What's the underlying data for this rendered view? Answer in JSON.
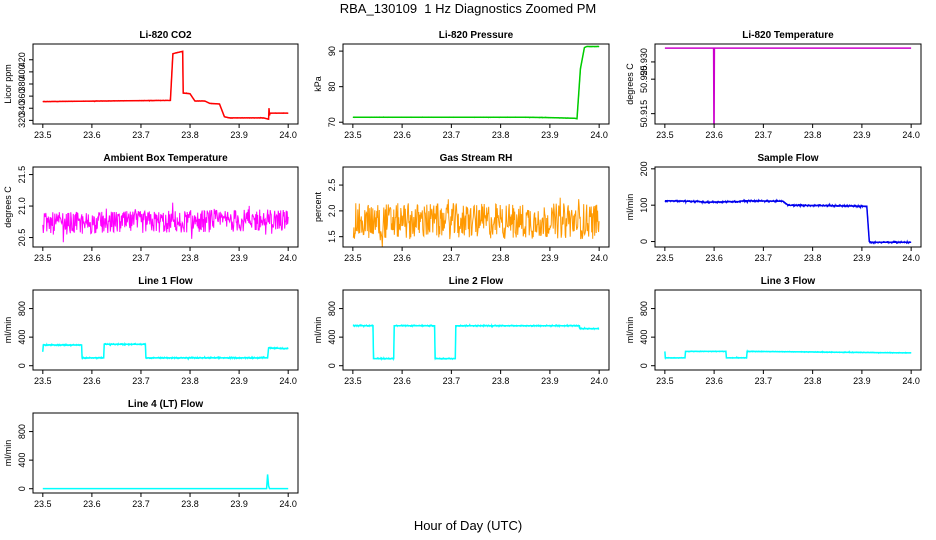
{
  "title": "RBA_130109  1 Hz Diagnostics Zoomed PM",
  "xlabel": "Hour of Day (UTC)",
  "chart_data": [
    {
      "type": "line",
      "title": "Li-820 CO2",
      "ylabel": "Licor ppm",
      "color": "#ff0000",
      "xlim": [
        23.48,
        24.02
      ],
      "ylim": [
        314,
        446
      ],
      "xticks": [
        "23.5",
        "23.6",
        "23.7",
        "23.8",
        "23.9",
        "24.0"
      ],
      "yticks": [
        "320",
        "340",
        "360",
        "380",
        "400",
        "420"
      ],
      "noise": 0.5,
      "x": [
        23.5,
        23.76,
        23.765,
        23.785,
        23.786,
        23.8,
        23.81,
        23.83,
        23.84,
        23.86,
        23.87,
        23.88,
        23.95,
        23.96,
        23.961,
        23.962,
        23.963,
        24.0
      ],
      "y": [
        351,
        353,
        430,
        434,
        365,
        364,
        352,
        352,
        348,
        347,
        326,
        324,
        324,
        322,
        340,
        328,
        332,
        332
      ]
    },
    {
      "type": "line",
      "title": "Li-820 Pressure",
      "ylabel": "kPa",
      "color": "#00cc00",
      "xlim": [
        23.48,
        24.02
      ],
      "ylim": [
        69.5,
        92
      ],
      "xticks": [
        "23.5",
        "23.6",
        "23.7",
        "23.8",
        "23.9",
        "24.0"
      ],
      "yticks": [
        "70",
        "80",
        "90"
      ],
      "noise": 0.08,
      "x": [
        23.5,
        23.85,
        23.9,
        23.95,
        23.955,
        23.962,
        23.97,
        23.975,
        24.0
      ],
      "y": [
        71.4,
        71.4,
        71.3,
        71.1,
        71.0,
        85,
        91,
        91.3,
        91.3
      ]
    },
    {
      "type": "line",
      "title": "Li-820 Temperature",
      "ylabel": "degrees C",
      "color": "#cc00cc",
      "xlim": [
        23.48,
        24.02
      ],
      "ylim": [
        50.912,
        50.9352
      ],
      "xticks": [
        "23.5",
        "23.6",
        "23.7",
        "23.8",
        "23.9",
        "24.0"
      ],
      "yticks": [
        "50.915",
        "50.925",
        "50.930"
      ],
      "noise": 0,
      "x": [
        23.5,
        23.599,
        23.5995,
        23.6,
        23.6005,
        24.0
      ],
      "y": [
        50.934,
        50.934,
        50.912,
        50.912,
        50.934,
        50.934
      ]
    },
    {
      "type": "line",
      "title": "Ambient Box Temperature",
      "ylabel": "degrees C",
      "color": "#ff00ff",
      "xlim": [
        23.48,
        24.02
      ],
      "ylim": [
        20.35,
        21.62
      ],
      "xticks": [
        "23.5",
        "23.6",
        "23.7",
        "23.8",
        "23.9",
        "24.0"
      ],
      "yticks": [
        "20.5",
        "21.0",
        "21.5"
      ],
      "noise": 0.18,
      "x": [
        23.5,
        24.0
      ],
      "y": [
        20.72,
        20.78
      ]
    },
    {
      "type": "line",
      "title": "Gas Stream RH",
      "ylabel": "percent",
      "color": "#ff9900",
      "xlim": [
        23.48,
        24.02
      ],
      "ylim": [
        1.3,
        2.85
      ],
      "xticks": [
        "23.5",
        "23.6",
        "23.7",
        "23.8",
        "23.9",
        "24.0"
      ],
      "yticks": [
        "1.5",
        "2.0",
        "2.5"
      ],
      "noise": 0.35,
      "x": [
        23.5,
        24.0
      ],
      "y": [
        1.8,
        1.8
      ]
    },
    {
      "type": "line",
      "title": "Sample Flow",
      "ylabel": "ml/min",
      "color": "#0000ee",
      "xlim": [
        23.48,
        24.02
      ],
      "ylim": [
        -15,
        205
      ],
      "xticks": [
        "23.5",
        "23.6",
        "23.7",
        "23.8",
        "23.9",
        "24.0"
      ],
      "yticks": [
        "0",
        "100",
        "200"
      ],
      "noise": 3,
      "x": [
        23.5,
        23.57,
        23.58,
        23.65,
        23.66,
        23.74,
        23.75,
        23.86,
        23.91,
        23.915,
        23.92,
        24.0
      ],
      "y": [
        112,
        110,
        108,
        110,
        112,
        111,
        100,
        98,
        97,
        0,
        -2,
        -2
      ]
    },
    {
      "type": "line",
      "title": "Line 1 Flow",
      "ylabel": "ml/min",
      "color": "#00ffff",
      "xlim": [
        23.48,
        24.02
      ],
      "ylim": [
        -60,
        1060
      ],
      "xticks": [
        "23.5",
        "23.6",
        "23.7",
        "23.8",
        "23.9",
        "24.0"
      ],
      "yticks": [
        "0",
        "400",
        "800"
      ],
      "noise": 12,
      "x": [
        23.5,
        23.501,
        23.579,
        23.58,
        23.624,
        23.625,
        23.709,
        23.71,
        23.95,
        23.958,
        23.96,
        24.0
      ],
      "y": [
        200,
        290,
        290,
        110,
        110,
        300,
        300,
        110,
        110,
        110,
        250,
        240
      ]
    },
    {
      "type": "line",
      "title": "Line 2 Flow",
      "ylabel": "ml/min",
      "color": "#00ffff",
      "xlim": [
        23.48,
        24.02
      ],
      "ylim": [
        -60,
        1060
      ],
      "xticks": [
        "23.5",
        "23.6",
        "23.7",
        "23.8",
        "23.9",
        "24.0"
      ],
      "yticks": [
        "0",
        "400",
        "800"
      ],
      "noise": 12,
      "x": [
        23.5,
        23.541,
        23.542,
        23.583,
        23.584,
        23.666,
        23.667,
        23.708,
        23.709,
        23.96,
        23.961,
        24.0
      ],
      "y": [
        560,
        560,
        100,
        100,
        560,
        560,
        100,
        100,
        560,
        560,
        520,
        520
      ]
    },
    {
      "type": "line",
      "title": "Line 3 Flow",
      "ylabel": "ml/min",
      "color": "#00ffff",
      "xlim": [
        23.48,
        24.02
      ],
      "ylim": [
        -60,
        1060
      ],
      "xticks": [
        "23.5",
        "23.6",
        "23.7",
        "23.8",
        "23.9",
        "24.0"
      ],
      "yticks": [
        "0",
        "400",
        "800"
      ],
      "noise": 7,
      "x": [
        23.5,
        23.501,
        23.541,
        23.542,
        23.624,
        23.625,
        23.666,
        23.667,
        24.0
      ],
      "y": [
        200,
        110,
        110,
        200,
        200,
        110,
        110,
        200,
        180
      ]
    },
    {
      "type": "line",
      "title": "Line 4 (LT) Flow",
      "ylabel": "ml/min",
      "color": "#00ffff",
      "xlim": [
        23.48,
        24.02
      ],
      "ylim": [
        -60,
        1060
      ],
      "xticks": [
        "23.5",
        "23.6",
        "23.7",
        "23.8",
        "23.9",
        "24.0"
      ],
      "yticks": [
        "0",
        "400",
        "800"
      ],
      "noise": 0,
      "x": [
        23.5,
        23.955,
        23.956,
        23.958,
        23.96,
        23.962,
        24.0
      ],
      "y": [
        2,
        2,
        2,
        200,
        40,
        2,
        2
      ]
    }
  ]
}
